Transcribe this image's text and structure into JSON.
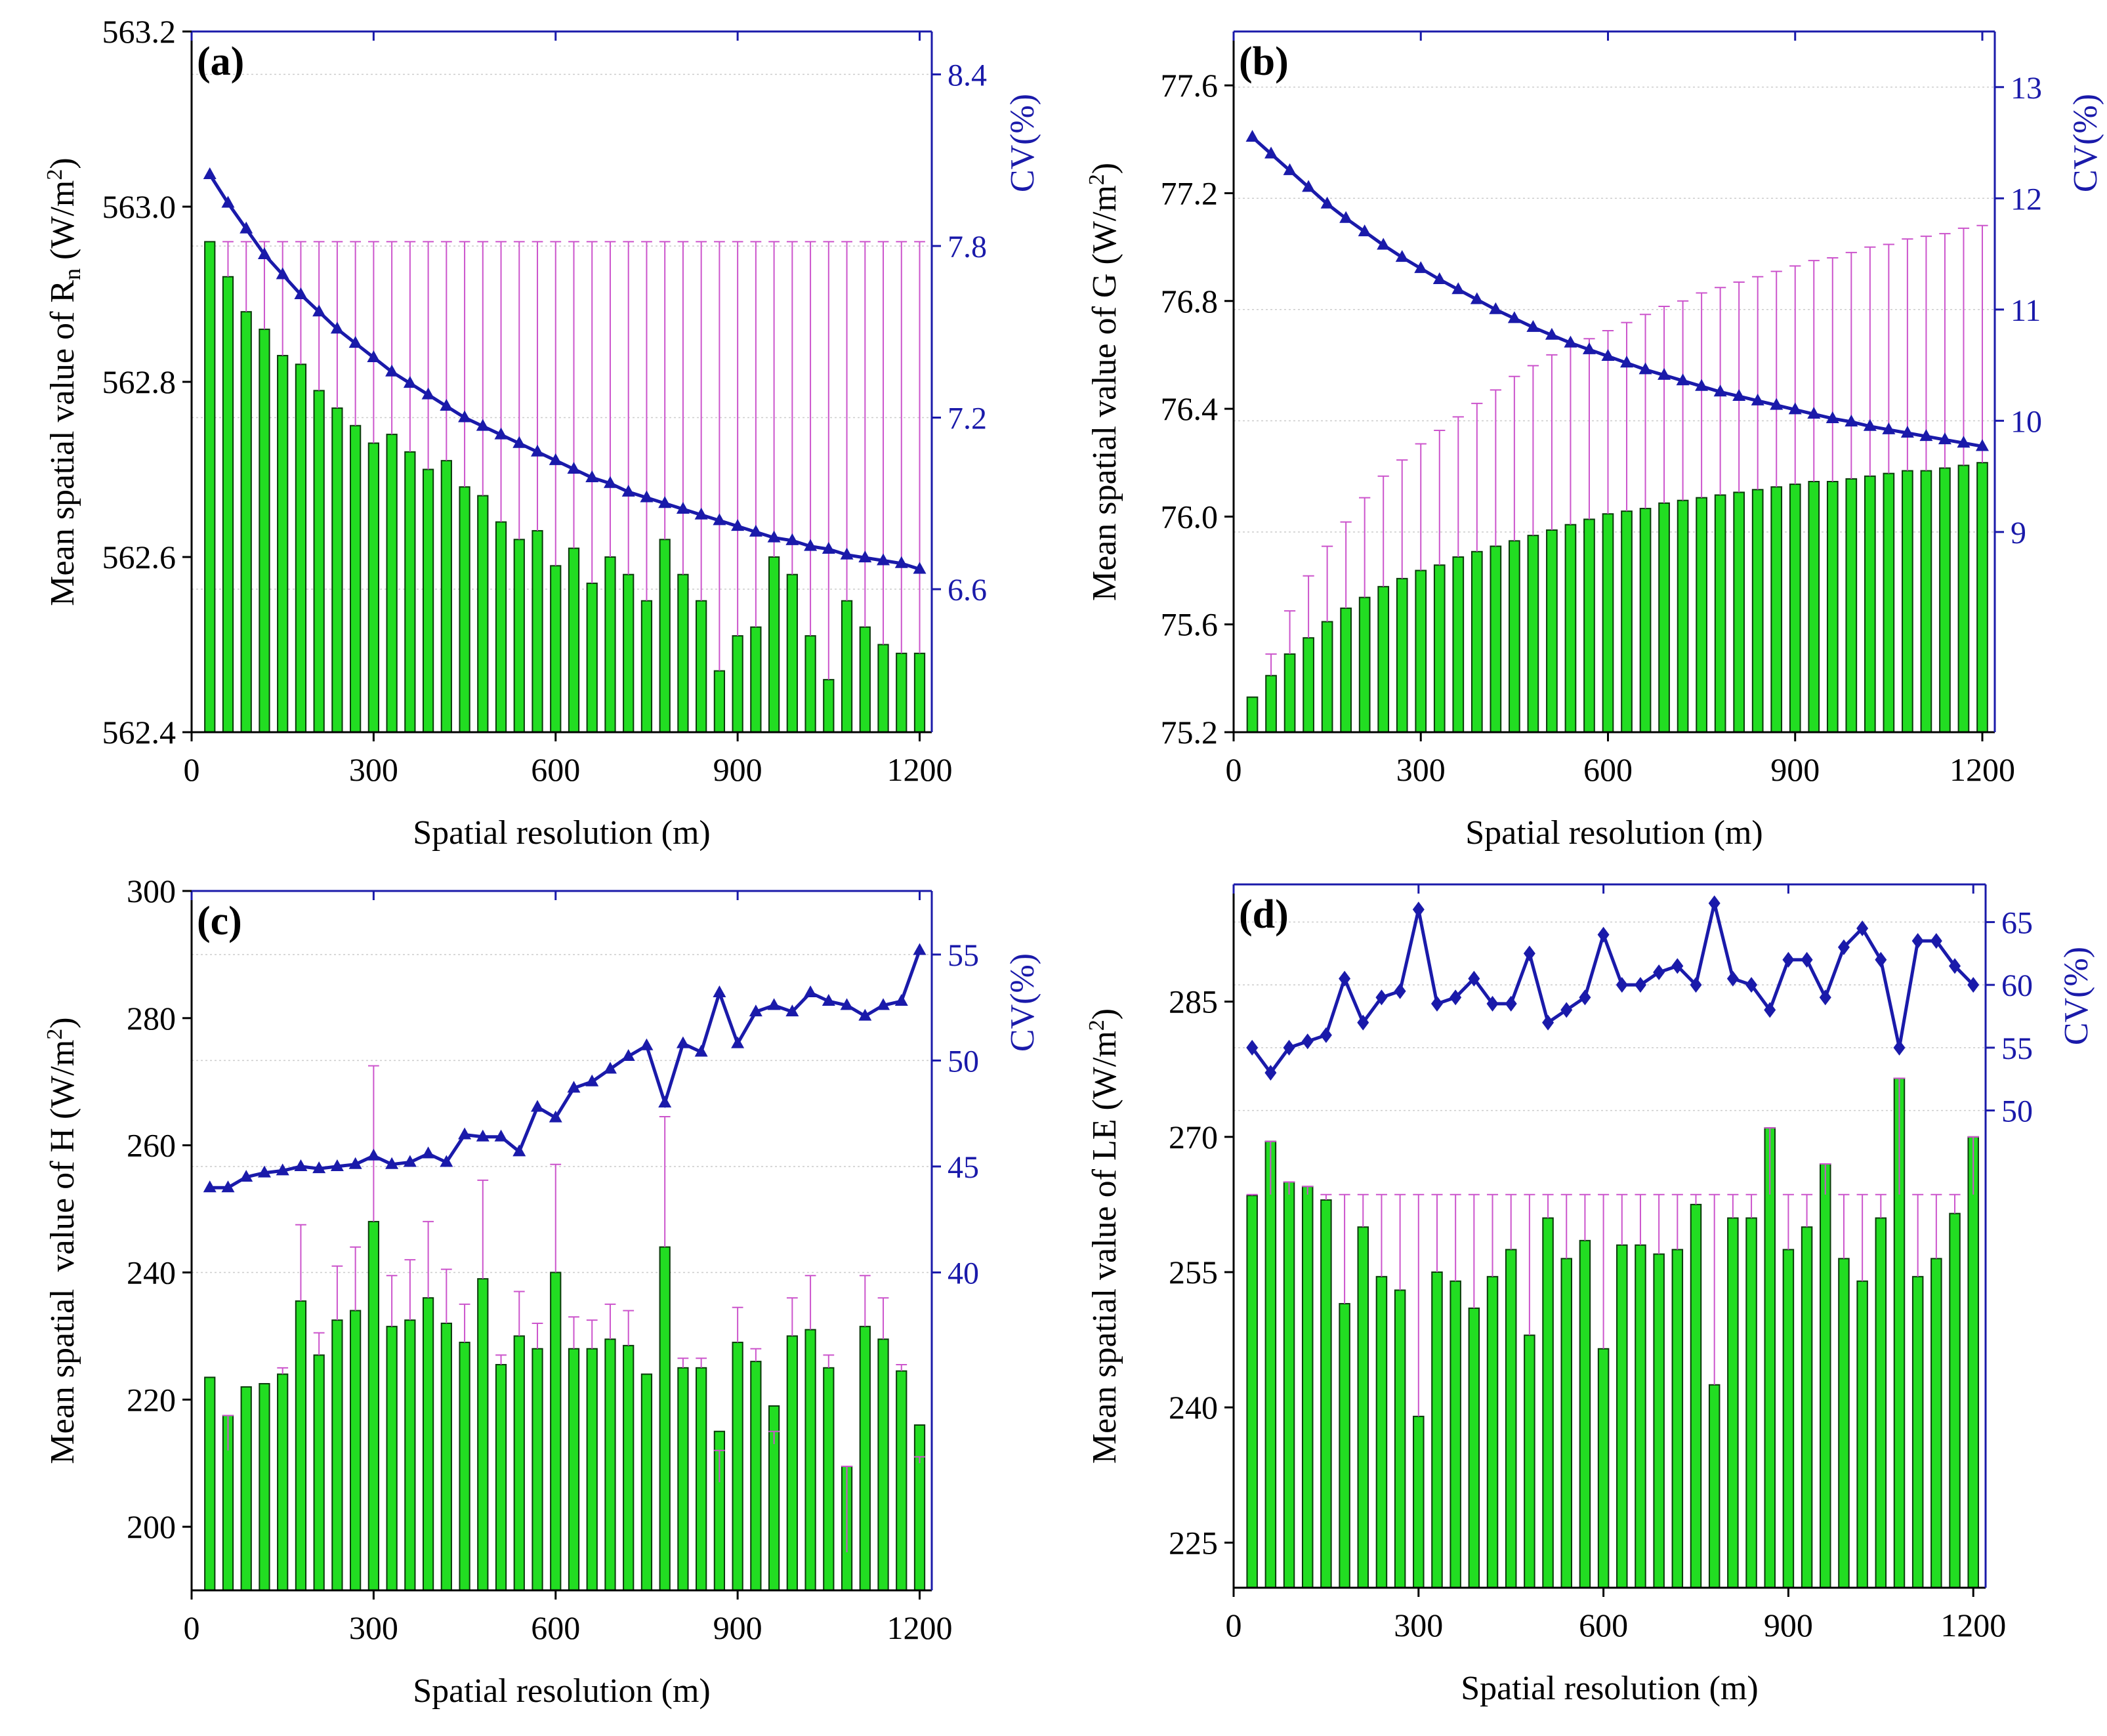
{
  "colors": {
    "bar": "#22dd22",
    "bar_edge": "#0a3a0a",
    "error": "#cc55cc",
    "cv": "#1a1aaa",
    "axis": "#000000"
  },
  "chart_data": [
    {
      "type": "bar",
      "panel_label": "(a)",
      "xlabel": "Spatial resolution (m)",
      "ylabel": "Mean spatial value of R",
      "ylabel_sub": "n",
      "ylabel_unit_pre": " (W/m",
      "ylabel_unit_sup": "2",
      "ylabel_unit_post": ")",
      "y2label": "CV(%)",
      "xlim": [
        0,
        1220
      ],
      "xticks": [
        "0",
        "300",
        "600",
        "900",
        "1200"
      ],
      "ylim": [
        562.4,
        563.2
      ],
      "yticks": [
        "562.4",
        "562.6",
        "562.8",
        "563.0",
        "563.2"
      ],
      "y2lim": [
        6.1,
        8.55
      ],
      "y2ticks": [
        "6.6",
        "7.2",
        "7.8",
        "8.4"
      ],
      "error_reference": 562.96,
      "x": [
        30,
        60,
        90,
        120,
        150,
        180,
        210,
        240,
        270,
        300,
        330,
        360,
        390,
        420,
        450,
        480,
        510,
        540,
        570,
        600,
        630,
        660,
        690,
        720,
        750,
        780,
        810,
        840,
        870,
        900,
        930,
        960,
        990,
        1020,
        1050,
        1080,
        1110,
        1140,
        1170,
        1200
      ],
      "values": [
        562.96,
        562.92,
        562.88,
        562.86,
        562.83,
        562.82,
        562.79,
        562.77,
        562.75,
        562.73,
        562.74,
        562.72,
        562.7,
        562.71,
        562.68,
        562.67,
        562.64,
        562.62,
        562.63,
        562.59,
        562.61,
        562.57,
        562.6,
        562.58,
        562.55,
        562.62,
        562.58,
        562.55,
        562.47,
        562.51,
        562.52,
        562.6,
        562.58,
        562.51,
        562.46,
        562.55,
        562.52,
        562.5,
        562.49,
        562.49
      ],
      "cv": [
        8.05,
        7.95,
        7.86,
        7.77,
        7.7,
        7.63,
        7.57,
        7.51,
        7.46,
        7.41,
        7.36,
        7.32,
        7.28,
        7.24,
        7.2,
        7.17,
        7.14,
        7.11,
        7.08,
        7.05,
        7.02,
        6.99,
        6.97,
        6.94,
        6.92,
        6.9,
        6.88,
        6.86,
        6.84,
        6.82,
        6.8,
        6.78,
        6.77,
        6.75,
        6.74,
        6.72,
        6.71,
        6.7,
        6.69,
        6.67
      ],
      "cv_marker": "triangle"
    },
    {
      "type": "bar",
      "panel_label": "(b)",
      "xlabel": "Spatial resolution (m)",
      "ylabel": "Mean spatial value of G",
      "ylabel_sub": "",
      "ylabel_unit_pre": " (W/m",
      "ylabel_unit_sup": "2",
      "ylabel_unit_post": ")",
      "y2label": "CV(%)",
      "xlim": [
        0,
        1220
      ],
      "xticks": [
        "0",
        "300",
        "600",
        "900",
        "1200"
      ],
      "ylim": [
        75.2,
        77.8
      ],
      "yticks": [
        "75.2",
        "75.6",
        "76.0",
        "76.4",
        "76.8",
        "77.2",
        "77.6"
      ],
      "y2lim": [
        7.2,
        13.5
      ],
      "y2ticks": [
        "9",
        "10",
        "11",
        "12",
        "13"
      ],
      "x": [
        30,
        60,
        90,
        120,
        150,
        180,
        210,
        240,
        270,
        300,
        330,
        360,
        390,
        420,
        450,
        480,
        510,
        540,
        570,
        600,
        630,
        660,
        690,
        720,
        750,
        780,
        810,
        840,
        870,
        900,
        930,
        960,
        990,
        1020,
        1050,
        1080,
        1110,
        1140,
        1170,
        1200
      ],
      "values": [
        75.33,
        75.41,
        75.49,
        75.55,
        75.61,
        75.66,
        75.7,
        75.74,
        75.77,
        75.8,
        75.82,
        75.85,
        75.87,
        75.89,
        75.91,
        75.93,
        75.95,
        75.97,
        75.99,
        76.01,
        76.02,
        76.03,
        76.05,
        76.06,
        76.07,
        76.08,
        76.09,
        76.1,
        76.11,
        76.12,
        76.13,
        76.13,
        76.14,
        76.15,
        76.16,
        76.17,
        76.17,
        76.18,
        76.19,
        76.2
      ],
      "error_tops": [
        75.33,
        75.49,
        75.65,
        75.78,
        75.89,
        75.98,
        76.07,
        76.15,
        76.21,
        76.27,
        76.32,
        76.37,
        76.42,
        76.47,
        76.52,
        76.56,
        76.6,
        76.63,
        76.66,
        76.69,
        76.72,
        76.75,
        76.78,
        76.8,
        76.83,
        76.85,
        76.87,
        76.89,
        76.91,
        76.93,
        76.95,
        76.96,
        76.98,
        77.0,
        77.01,
        77.03,
        77.04,
        77.05,
        77.07,
        77.08
      ],
      "cv": [
        12.55,
        12.4,
        12.25,
        12.1,
        11.95,
        11.82,
        11.7,
        11.58,
        11.47,
        11.37,
        11.27,
        11.18,
        11.09,
        11.0,
        10.92,
        10.84,
        10.77,
        10.7,
        10.64,
        10.58,
        10.52,
        10.46,
        10.41,
        10.36,
        10.31,
        10.26,
        10.22,
        10.18,
        10.14,
        10.1,
        10.06,
        10.02,
        9.99,
        9.95,
        9.92,
        9.89,
        9.86,
        9.83,
        9.8,
        9.77
      ],
      "cv_marker": "triangle"
    },
    {
      "type": "bar",
      "panel_label": "(c)",
      "xlabel": "Spatial resolution (m)",
      "ylabel": "Mean spatial  value of H",
      "ylabel_sub": "",
      "ylabel_unit_pre": " (W/m",
      "ylabel_unit_sup": "2",
      "ylabel_unit_post": ")",
      "y2label": "CV(%)",
      "xlim": [
        0,
        1220
      ],
      "xticks": [
        "0",
        "300",
        "600",
        "900",
        "1200"
      ],
      "ylim": [
        190,
        300
      ],
      "yticks": [
        "200",
        "220",
        "240",
        "260",
        "280",
        "300"
      ],
      "y2lim": [
        25,
        58
      ],
      "y2ticks": [
        "40",
        "45",
        "50",
        "55"
      ],
      "error_reference": 212,
      "x": [
        30,
        60,
        90,
        120,
        150,
        180,
        210,
        240,
        270,
        300,
        330,
        360,
        390,
        420,
        450,
        480,
        510,
        540,
        570,
        600,
        630,
        660,
        690,
        720,
        750,
        780,
        810,
        840,
        870,
        900,
        930,
        960,
        990,
        1020,
        1050,
        1080,
        1110,
        1140,
        1170,
        1200
      ],
      "values": [
        223.5,
        217.5,
        222,
        222.5,
        224,
        235.5,
        227,
        232.5,
        234,
        248,
        231.5,
        232.5,
        236,
        232,
        229,
        239,
        225.5,
        230,
        228,
        240,
        228,
        228,
        229.5,
        228.5,
        224,
        244,
        225,
        225,
        215,
        229,
        226,
        219,
        230,
        231,
        225,
        209.5,
        231.5,
        229.5,
        224.5,
        216
      ],
      "error_tops": [
        223.5,
        212,
        222,
        222.5,
        225,
        247.5,
        230.5,
        241,
        244,
        272.5,
        239.5,
        242,
        248,
        240.5,
        235,
        254.5,
        227,
        237,
        232,
        257,
        233,
        232.5,
        235,
        234,
        224,
        264.5,
        226.5,
        226.5,
        212,
        234.5,
        228,
        215,
        236,
        239.5,
        227,
        209.5,
        239.5,
        236,
        225.5,
        211
      ],
      "error_bottoms": [
        223.5,
        217.5,
        222,
        222.5,
        224,
        235.5,
        227,
        232.5,
        234,
        248,
        231.5,
        232.5,
        236,
        232,
        229,
        239,
        225.5,
        230,
        228,
        240,
        228,
        228,
        229.5,
        228.5,
        224,
        244,
        225,
        225,
        207,
        229,
        226,
        213,
        230,
        231,
        225,
        196,
        231.5,
        229.5,
        224.5,
        210
      ],
      "cv": [
        44,
        44,
        44.5,
        44.7,
        44.8,
        45,
        44.9,
        45,
        45.1,
        45.5,
        45.1,
        45.2,
        45.6,
        45.2,
        46.5,
        46.4,
        46.4,
        45.7,
        47.8,
        47.3,
        48.7,
        49,
        49.6,
        50.2,
        50.7,
        48,
        50.8,
        50.4,
        53.2,
        50.8,
        52.3,
        52.6,
        52.3,
        53.2,
        52.8,
        52.6,
        52.1,
        52.6,
        52.8,
        55.2
      ],
      "cv_marker": "triangle"
    },
    {
      "type": "bar",
      "panel_label": "(d)",
      "xlabel": "Spatial resolution (m)",
      "ylabel": "Mean spatial value of LE",
      "ylabel_sub": "",
      "ylabel_unit_pre": " (W/m",
      "ylabel_unit_sup": "2",
      "ylabel_unit_post": ")",
      "y2label": "CV(%)",
      "xlim": [
        0,
        1220
      ],
      "xticks": [
        "0",
        "300",
        "600",
        "900",
        "1200"
      ],
      "ylim": [
        220,
        298
      ],
      "yticks": [
        "225",
        "240",
        "255",
        "270",
        "285"
      ],
      "y2lim": [
        12,
        68
      ],
      "y2ticks": [
        "50",
        "55",
        "60",
        "65"
      ],
      "error_reference": 263.6,
      "x": [
        30,
        60,
        90,
        120,
        150,
        180,
        210,
        240,
        270,
        300,
        330,
        360,
        390,
        420,
        450,
        480,
        510,
        540,
        570,
        600,
        630,
        660,
        690,
        720,
        750,
        780,
        810,
        840,
        870,
        900,
        930,
        960,
        990,
        1020,
        1050,
        1080,
        1110,
        1140,
        1170,
        1200
      ],
      "values": [
        263.5,
        269.5,
        265,
        264.5,
        263,
        251.5,
        260,
        254.5,
        253,
        239,
        255,
        254,
        251,
        254.5,
        257.5,
        248,
        261,
        256.5,
        258.5,
        246.5,
        258,
        258,
        257,
        257.5,
        262.5,
        242.5,
        261,
        261,
        271,
        257.5,
        260,
        267,
        256.5,
        254,
        261,
        276.5,
        254.5,
        256.5,
        261.5,
        270
      ],
      "cv": [
        55,
        53,
        55,
        55.5,
        56,
        60.5,
        57,
        59,
        59.5,
        66,
        58.5,
        59,
        60.5,
        58.5,
        58.5,
        62.5,
        57,
        58,
        59,
        64,
        60,
        60,
        61,
        61.5,
        60,
        66.5,
        60.5,
        60,
        58,
        62,
        62,
        59,
        63,
        64.5,
        62,
        55,
        63.5,
        63.5,
        61.5,
        60
      ],
      "cv_marker": "diamond"
    }
  ]
}
